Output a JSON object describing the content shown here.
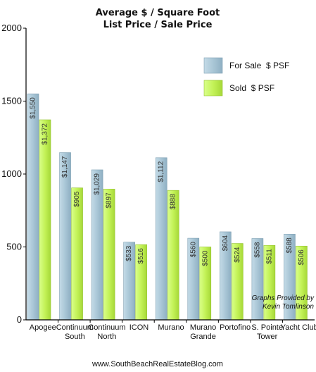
{
  "chart_data": {
    "type": "bar",
    "title": "Average $ / Square Foot",
    "subtitle": "List Price / Sale Price",
    "categories": [
      [
        "Apogee"
      ],
      [
        "Continuum",
        "South"
      ],
      [
        "Continuum",
        "North"
      ],
      [
        "ICON"
      ],
      [
        "Murano"
      ],
      [
        "Murano",
        "Grande"
      ],
      [
        "Portofino"
      ],
      [
        "S. Pointe",
        "Tower"
      ],
      [
        "Yacht Club"
      ]
    ],
    "series": [
      {
        "name": "For Sale  $ PSF",
        "color": "#a9c6d6",
        "values": [
          1550,
          1147,
          1029,
          533,
          1112,
          560,
          604,
          558,
          588
        ],
        "labels": [
          "$1,550",
          "$1,147",
          "$1,029",
          "$533",
          "$1,112",
          "$560",
          "$604",
          "$558",
          "$588"
        ]
      },
      {
        "name": "Sold  $ PSF",
        "color": "#c3f257",
        "values": [
          1372,
          905,
          897,
          516,
          888,
          500,
          524,
          511,
          506
        ],
        "labels": [
          "$1,372",
          "$905",
          "$897",
          "$516",
          "$888",
          "$500",
          "$524",
          "$511",
          "$506"
        ]
      }
    ],
    "ylim": [
      0,
      2000
    ],
    "yticks": [
      0,
      500,
      1000,
      1500,
      2000
    ],
    "grid": false,
    "legend": "top-right",
    "annotation": [
      "Graphs Provided by",
      "Kevin Tomlinson"
    ],
    "footer": "www.SouthBeachRealEstateBlog.com"
  }
}
